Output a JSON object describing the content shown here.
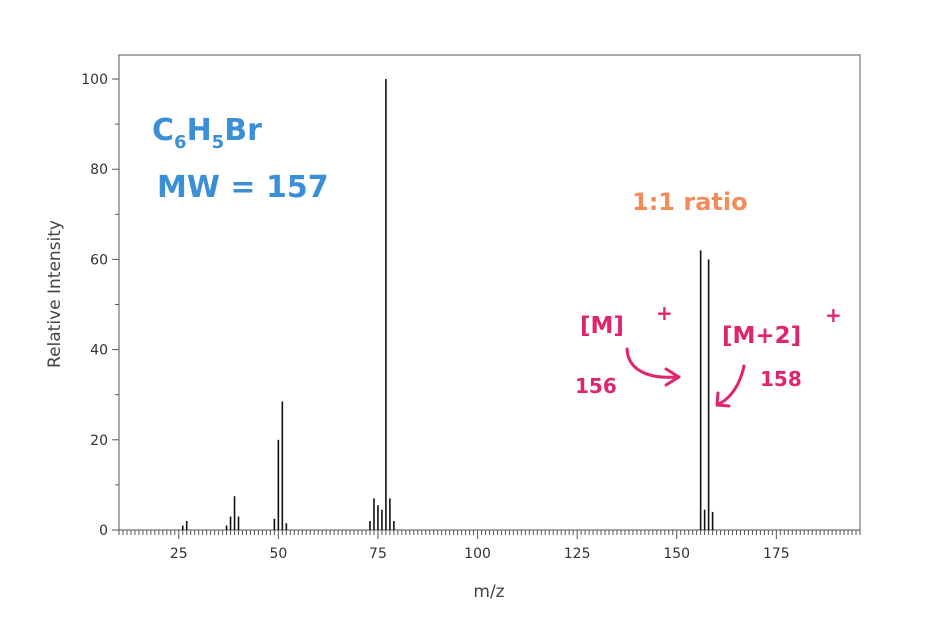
{
  "chart_data": {
    "type": "bar",
    "xlabel": "m/z",
    "ylabel": "Relative Intensity",
    "xlim": [
      10,
      196
    ],
    "ylim": [
      0,
      100
    ],
    "xticks": [
      25,
      50,
      75,
      100,
      125,
      150,
      175
    ],
    "yticks": [
      0,
      20,
      40,
      60,
      80,
      100
    ],
    "grid": false,
    "peaks": [
      {
        "mz": 26,
        "intensity": 1
      },
      {
        "mz": 27,
        "intensity": 2
      },
      {
        "mz": 37,
        "intensity": 1
      },
      {
        "mz": 38,
        "intensity": 3
      },
      {
        "mz": 39,
        "intensity": 7.5
      },
      {
        "mz": 40,
        "intensity": 3
      },
      {
        "mz": 49,
        "intensity": 2.5
      },
      {
        "mz": 50,
        "intensity": 20
      },
      {
        "mz": 51,
        "intensity": 28.5
      },
      {
        "mz": 52,
        "intensity": 1.5
      },
      {
        "mz": 73,
        "intensity": 2
      },
      {
        "mz": 74,
        "intensity": 7
      },
      {
        "mz": 75,
        "intensity": 5.5
      },
      {
        "mz": 76,
        "intensity": 4.5
      },
      {
        "mz": 77,
        "intensity": 100
      },
      {
        "mz": 78,
        "intensity": 7
      },
      {
        "mz": 79,
        "intensity": 2
      },
      {
        "mz": 156,
        "intensity": 62
      },
      {
        "mz": 157,
        "intensity": 4.5
      },
      {
        "mz": 158,
        "intensity": 60
      },
      {
        "mz": 159,
        "intensity": 4
      }
    ]
  },
  "annotations": {
    "formula_main": "C",
    "formula_sub1": "6",
    "formula_mid": "H",
    "formula_sub2": "5",
    "formula_end": "Br",
    "mw": "MW = 157",
    "ratio": "1:1 ratio",
    "m_label": "[M]",
    "m_plus": "+",
    "m_value": "156",
    "m2_label": "[M+2]",
    "m2_plus": "+",
    "m2_value": "158"
  },
  "colors": {
    "formula": "#3a8fd6",
    "ratio": "#f28c5a",
    "annotation": "#e0246e",
    "bars": "#111111"
  }
}
